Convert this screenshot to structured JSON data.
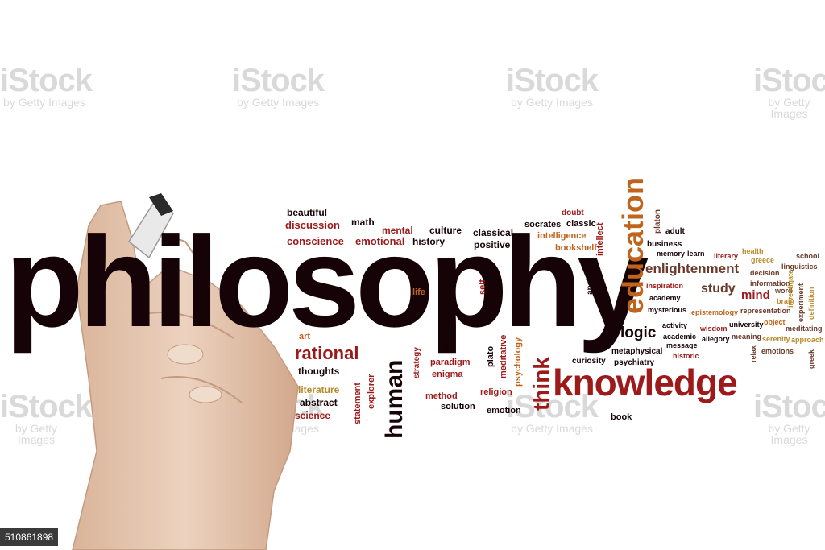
{
  "main_word": "philosophy",
  "watermark": {
    "brand": "iStock",
    "credit": "by Getty Images"
  },
  "image_id": "510861898",
  "colors": {
    "dark": "#160307",
    "red": "#9c1a1a",
    "orange": "#c0641d",
    "brown": "#6b3a2a",
    "gold": "#b98a2a"
  },
  "words": [
    "beautiful",
    "discussion",
    "math",
    "conscience",
    "emotional",
    "mental",
    "history",
    "culture",
    "classical",
    "positive",
    "socrates",
    "doubt",
    "classic",
    "intelligence",
    "bookshelf",
    "intellect",
    "education",
    "platon",
    "adult",
    "business",
    "memory",
    "learn",
    "enlightenment",
    "literary",
    "health",
    "greece",
    "school",
    "linguistics",
    "decision",
    "information",
    "study",
    "mind",
    "word",
    "inspiration",
    "academy",
    "mysterious",
    "epistemology",
    "representation",
    "brain",
    "activity",
    "wisdom",
    "university",
    "object",
    "meditating",
    "academic",
    "message",
    "allegory",
    "meaning",
    "serenity",
    "approach",
    "relax",
    "experiment",
    "investigate",
    "definition",
    "greek",
    "emotions",
    "historic",
    "metaphysical",
    "psychiatry",
    "logic",
    "curiosity",
    "knowledge",
    "book",
    "think",
    "psychology",
    "meditative",
    "religion",
    "emotion",
    "plato",
    "paradigm",
    "enigma",
    "method",
    "solution",
    "strategy",
    "calm",
    "human",
    "explorer",
    "statement",
    "art",
    "rational",
    "thoughts",
    "literature",
    "abstract",
    "science",
    "life",
    "self",
    "ancient"
  ]
}
